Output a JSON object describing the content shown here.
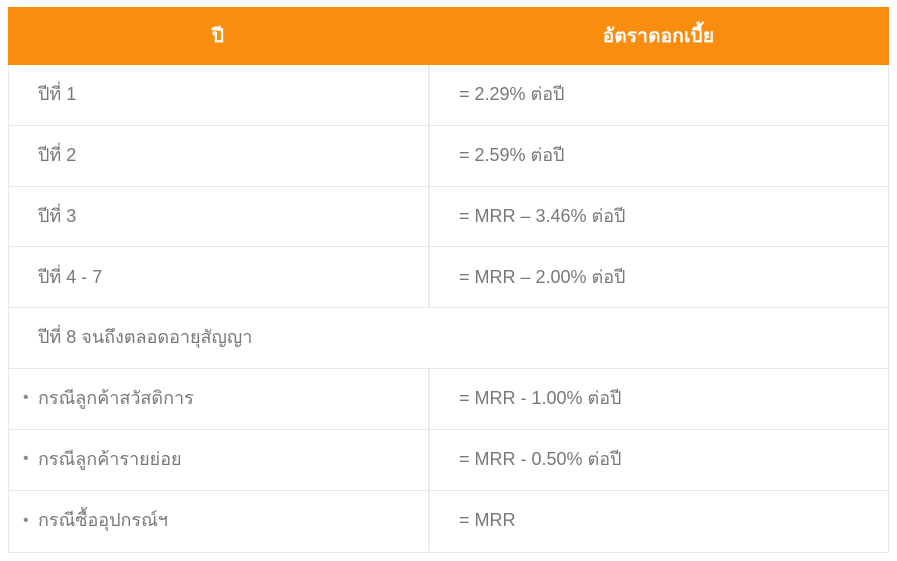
{
  "table": {
    "name": "interest-rate-table",
    "header": {
      "year_label": "ปี",
      "rate_label": "อัตราดอกเบี้ย"
    },
    "bullet_glyph": "•",
    "rows": [
      {
        "label": "ปีที่ 1",
        "value": "= 2.29% ต่อปี",
        "bullet": false,
        "full_span": false
      },
      {
        "label": "ปีที่ 2",
        "value": "= 2.59% ต่อปี",
        "bullet": false,
        "full_span": false
      },
      {
        "label": "ปีที่ 3",
        "value": "= MRR – 3.46% ต่อปี",
        "bullet": false,
        "full_span": false
      },
      {
        "label": "ปีที่ 4 - 7",
        "value": "= MRR – 2.00% ต่อปี",
        "bullet": false,
        "full_span": false
      },
      {
        "label": "ปีที่ 8 จนถึงตลอดอายุสัญญา",
        "value": "",
        "bullet": false,
        "full_span": true
      },
      {
        "label": "กรณีลูกค้าสวัสดิการ",
        "value": "= MRR - 1.00% ต่อปี",
        "bullet": true,
        "full_span": false
      },
      {
        "label": "กรณีลูกค้ารายย่อย",
        "value": "= MRR - 0.50% ต่อปี",
        "bullet": true,
        "full_span": false
      },
      {
        "label": "กรณีซื้ออุปกรณ์ฯ",
        "value": "= MRR",
        "bullet": true,
        "full_span": false
      }
    ],
    "colors": {
      "header_bg": "#f98d0f",
      "header_text": "#ffffff",
      "body_text": "#77787b",
      "grid_line": "#e9e9e9"
    }
  }
}
